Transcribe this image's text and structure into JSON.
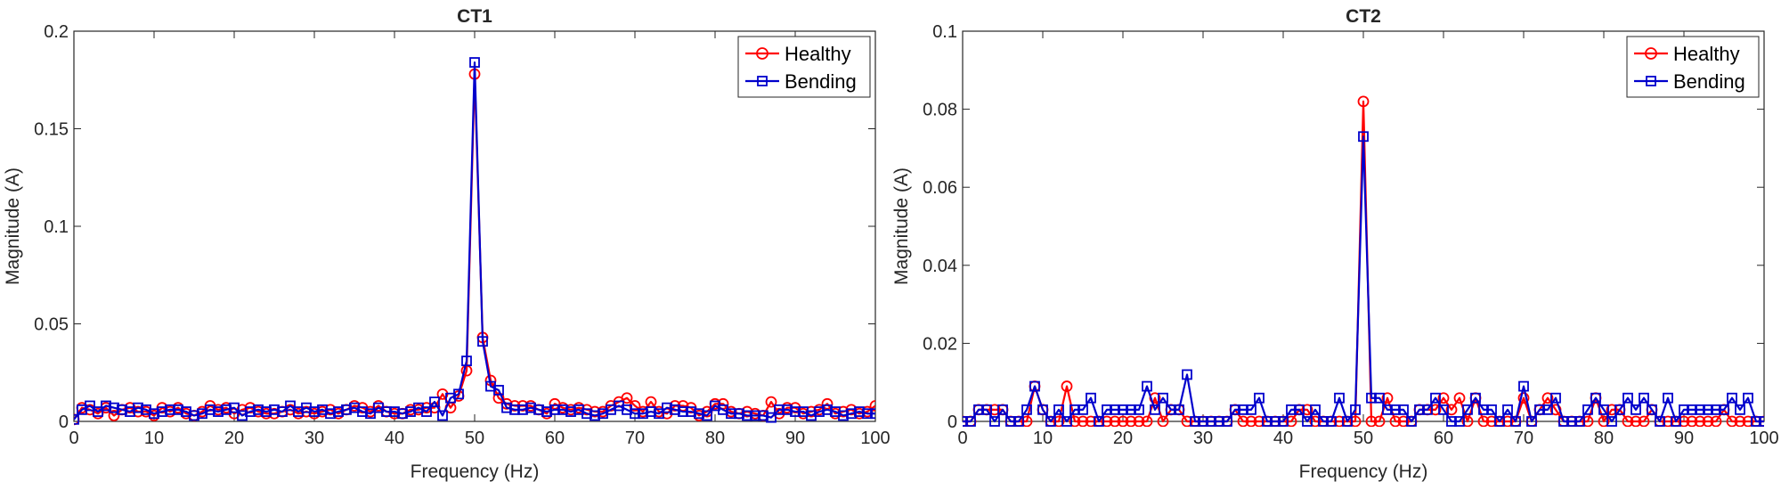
{
  "colors": {
    "healthy": "#ff0000",
    "bending": "#0000cc",
    "axes": "#262626",
    "background": "#ffffff"
  },
  "chart_data": [
    {
      "type": "line",
      "title": "CT1",
      "xlabel": "Frequency (Hz)",
      "ylabel": "Magnitude (A)",
      "xlim": [
        0,
        100
      ],
      "ylim": [
        0,
        0.2
      ],
      "xticks": [
        0,
        10,
        20,
        30,
        40,
        50,
        60,
        70,
        80,
        90,
        100
      ],
      "xtick_labels": [
        "0",
        "10",
        "20",
        "30",
        "40",
        "50",
        "60",
        "70",
        "80",
        "90",
        "100"
      ],
      "yticks": [
        0,
        0.05,
        0.1,
        0.15,
        0.2
      ],
      "ytick_labels": [
        "0",
        "0.05",
        "0.1",
        "0.15",
        "0.2"
      ],
      "grid": false,
      "legend_position": "top-right",
      "x": [
        0,
        1,
        2,
        3,
        4,
        5,
        6,
        7,
        8,
        9,
        10,
        11,
        12,
        13,
        14,
        15,
        16,
        17,
        18,
        19,
        20,
        21,
        22,
        23,
        24,
        25,
        26,
        27,
        28,
        29,
        30,
        31,
        32,
        33,
        34,
        35,
        36,
        37,
        38,
        39,
        40,
        41,
        42,
        43,
        44,
        45,
        46,
        47,
        48,
        49,
        50,
        51,
        52,
        53,
        54,
        55,
        56,
        57,
        58,
        59,
        60,
        61,
        62,
        63,
        64,
        65,
        66,
        67,
        68,
        69,
        70,
        71,
        72,
        73,
        74,
        75,
        76,
        77,
        78,
        79,
        80,
        81,
        82,
        83,
        84,
        85,
        86,
        87,
        88,
        89,
        90,
        91,
        92,
        93,
        94,
        95,
        96,
        97,
        98,
        99,
        100
      ],
      "series": [
        {
          "name": "Healthy",
          "color": "#ff0000",
          "marker": "circle",
          "values": [
            0.001,
            0.007,
            0.006,
            0.004,
            0.007,
            0.003,
            0.006,
            0.007,
            0.005,
            0.005,
            0.003,
            0.007,
            0.005,
            0.007,
            0.004,
            0.003,
            0.005,
            0.008,
            0.006,
            0.007,
            0.004,
            0.006,
            0.007,
            0.005,
            0.004,
            0.004,
            0.005,
            0.006,
            0.004,
            0.005,
            0.004,
            0.005,
            0.006,
            0.004,
            0.006,
            0.008,
            0.007,
            0.005,
            0.008,
            0.005,
            0.004,
            0.004,
            0.006,
            0.006,
            0.007,
            0.007,
            0.014,
            0.007,
            0.013,
            0.026,
            0.178,
            0.043,
            0.021,
            0.012,
            0.009,
            0.008,
            0.008,
            0.008,
            0.006,
            0.004,
            0.009,
            0.007,
            0.006,
            0.007,
            0.006,
            0.005,
            0.005,
            0.008,
            0.01,
            0.012,
            0.008,
            0.005,
            0.01,
            0.005,
            0.004,
            0.008,
            0.008,
            0.007,
            0.003,
            0.005,
            0.009,
            0.009,
            0.005,
            0.004,
            0.005,
            0.004,
            0.003,
            0.01,
            0.004,
            0.007,
            0.007,
            0.004,
            0.005,
            0.006,
            0.009,
            0.004,
            0.005,
            0.006,
            0.004,
            0.005,
            0.008
          ]
        },
        {
          "name": "Bending",
          "color": "#0000cc",
          "marker": "square",
          "values": [
            0.001,
            0.006,
            0.008,
            0.005,
            0.008,
            0.007,
            0.006,
            0.005,
            0.007,
            0.006,
            0.004,
            0.005,
            0.006,
            0.006,
            0.005,
            0.003,
            0.004,
            0.006,
            0.005,
            0.006,
            0.007,
            0.003,
            0.005,
            0.006,
            0.005,
            0.006,
            0.005,
            0.008,
            0.005,
            0.007,
            0.005,
            0.006,
            0.004,
            0.005,
            0.006,
            0.007,
            0.005,
            0.004,
            0.007,
            0.005,
            0.005,
            0.004,
            0.005,
            0.007,
            0.005,
            0.01,
            0.003,
            0.012,
            0.014,
            0.031,
            0.184,
            0.041,
            0.018,
            0.016,
            0.007,
            0.006,
            0.006,
            0.007,
            0.006,
            0.005,
            0.006,
            0.006,
            0.005,
            0.006,
            0.004,
            0.003,
            0.004,
            0.006,
            0.008,
            0.006,
            0.004,
            0.004,
            0.005,
            0.004,
            0.007,
            0.006,
            0.005,
            0.005,
            0.004,
            0.003,
            0.008,
            0.006,
            0.004,
            0.004,
            0.003,
            0.003,
            0.003,
            0.002,
            0.006,
            0.006,
            0.005,
            0.005,
            0.003,
            0.005,
            0.006,
            0.005,
            0.003,
            0.004,
            0.005,
            0.004,
            0.004
          ]
        }
      ]
    },
    {
      "type": "line",
      "title": "CT2",
      "xlabel": "Frequency (Hz)",
      "ylabel": "Magnitude (A)",
      "xlim": [
        0,
        100
      ],
      "ylim": [
        0,
        0.1
      ],
      "xticks": [
        0,
        10,
        20,
        30,
        40,
        50,
        60,
        70,
        80,
        90,
        100
      ],
      "xtick_labels": [
        "0",
        "10",
        "20",
        "30",
        "40",
        "50",
        "60",
        "70",
        "80",
        "90",
        "100"
      ],
      "yticks": [
        0,
        0.02,
        0.04,
        0.06,
        0.08,
        0.1
      ],
      "ytick_labels": [
        "0",
        "0.02",
        "0.04",
        "0.06",
        "0.08",
        "0.1"
      ],
      "grid": false,
      "legend_position": "top-right",
      "x": [
        0,
        1,
        2,
        3,
        4,
        5,
        6,
        7,
        8,
        9,
        10,
        11,
        12,
        13,
        14,
        15,
        16,
        17,
        18,
        19,
        20,
        21,
        22,
        23,
        24,
        25,
        26,
        27,
        28,
        29,
        30,
        31,
        32,
        33,
        34,
        35,
        36,
        37,
        38,
        39,
        40,
        41,
        42,
        43,
        44,
        45,
        46,
        47,
        48,
        49,
        50,
        51,
        52,
        53,
        54,
        55,
        56,
        57,
        58,
        59,
        60,
        61,
        62,
        63,
        64,
        65,
        66,
        67,
        68,
        69,
        70,
        71,
        72,
        73,
        74,
        75,
        76,
        77,
        78,
        79,
        80,
        81,
        82,
        83,
        84,
        85,
        86,
        87,
        88,
        89,
        90,
        91,
        92,
        93,
        94,
        95,
        96,
        97,
        98,
        99,
        100
      ],
      "series": [
        {
          "name": "Healthy",
          "color": "#ff0000",
          "marker": "circle",
          "values": [
            0,
            0,
            0.003,
            0.003,
            0.003,
            0.003,
            0,
            0,
            0,
            0.009,
            0.003,
            0,
            0,
            0.009,
            0,
            0,
            0,
            0,
            0,
            0,
            0,
            0,
            0,
            0,
            0.006,
            0,
            0.003,
            0.003,
            0,
            0,
            0,
            0,
            0,
            0,
            0.003,
            0,
            0,
            0,
            0,
            0,
            0,
            0,
            0.003,
            0.003,
            0,
            0,
            0,
            0,
            0,
            0,
            0.082,
            0,
            0,
            0.006,
            0,
            0,
            0,
            0.003,
            0.003,
            0.003,
            0.006,
            0.003,
            0.006,
            0,
            0.006,
            0,
            0,
            0,
            0,
            0,
            0.006,
            0,
            0.003,
            0.006,
            0.003,
            0,
            0,
            0,
            0,
            0.006,
            0,
            0.003,
            0.003,
            0,
            0,
            0,
            0.003,
            0,
            0,
            0,
            0,
            0,
            0,
            0,
            0,
            0.003,
            0,
            0,
            0,
            0,
            0
          ]
        },
        {
          "name": "Bending",
          "color": "#0000cc",
          "marker": "square",
          "values": [
            0,
            0,
            0.003,
            0.003,
            0,
            0.003,
            0,
            0,
            0.003,
            0.009,
            0.003,
            0,
            0.003,
            0,
            0.003,
            0.003,
            0.006,
            0,
            0.003,
            0.003,
            0.003,
            0.003,
            0.003,
            0.009,
            0.003,
            0.006,
            0.003,
            0.003,
            0.012,
            0,
            0,
            0,
            0,
            0,
            0.003,
            0.003,
            0.003,
            0.006,
            0,
            0,
            0,
            0.003,
            0.003,
            0,
            0.003,
            0,
            0,
            0.006,
            0,
            0.003,
            0.073,
            0.006,
            0.006,
            0.003,
            0.003,
            0.003,
            0,
            0.003,
            0.003,
            0.006,
            0.003,
            0,
            0,
            0.003,
            0.006,
            0.003,
            0.003,
            0,
            0.003,
            0,
            0.009,
            0,
            0.003,
            0.003,
            0.006,
            0,
            0,
            0,
            0.003,
            0.006,
            0.003,
            0,
            0.003,
            0.006,
            0.003,
            0.006,
            0.003,
            0,
            0.006,
            0,
            0.003,
            0.003,
            0.003,
            0.003,
            0.003,
            0.003,
            0.006,
            0.003,
            0.006,
            0,
            0
          ]
        }
      ]
    }
  ]
}
